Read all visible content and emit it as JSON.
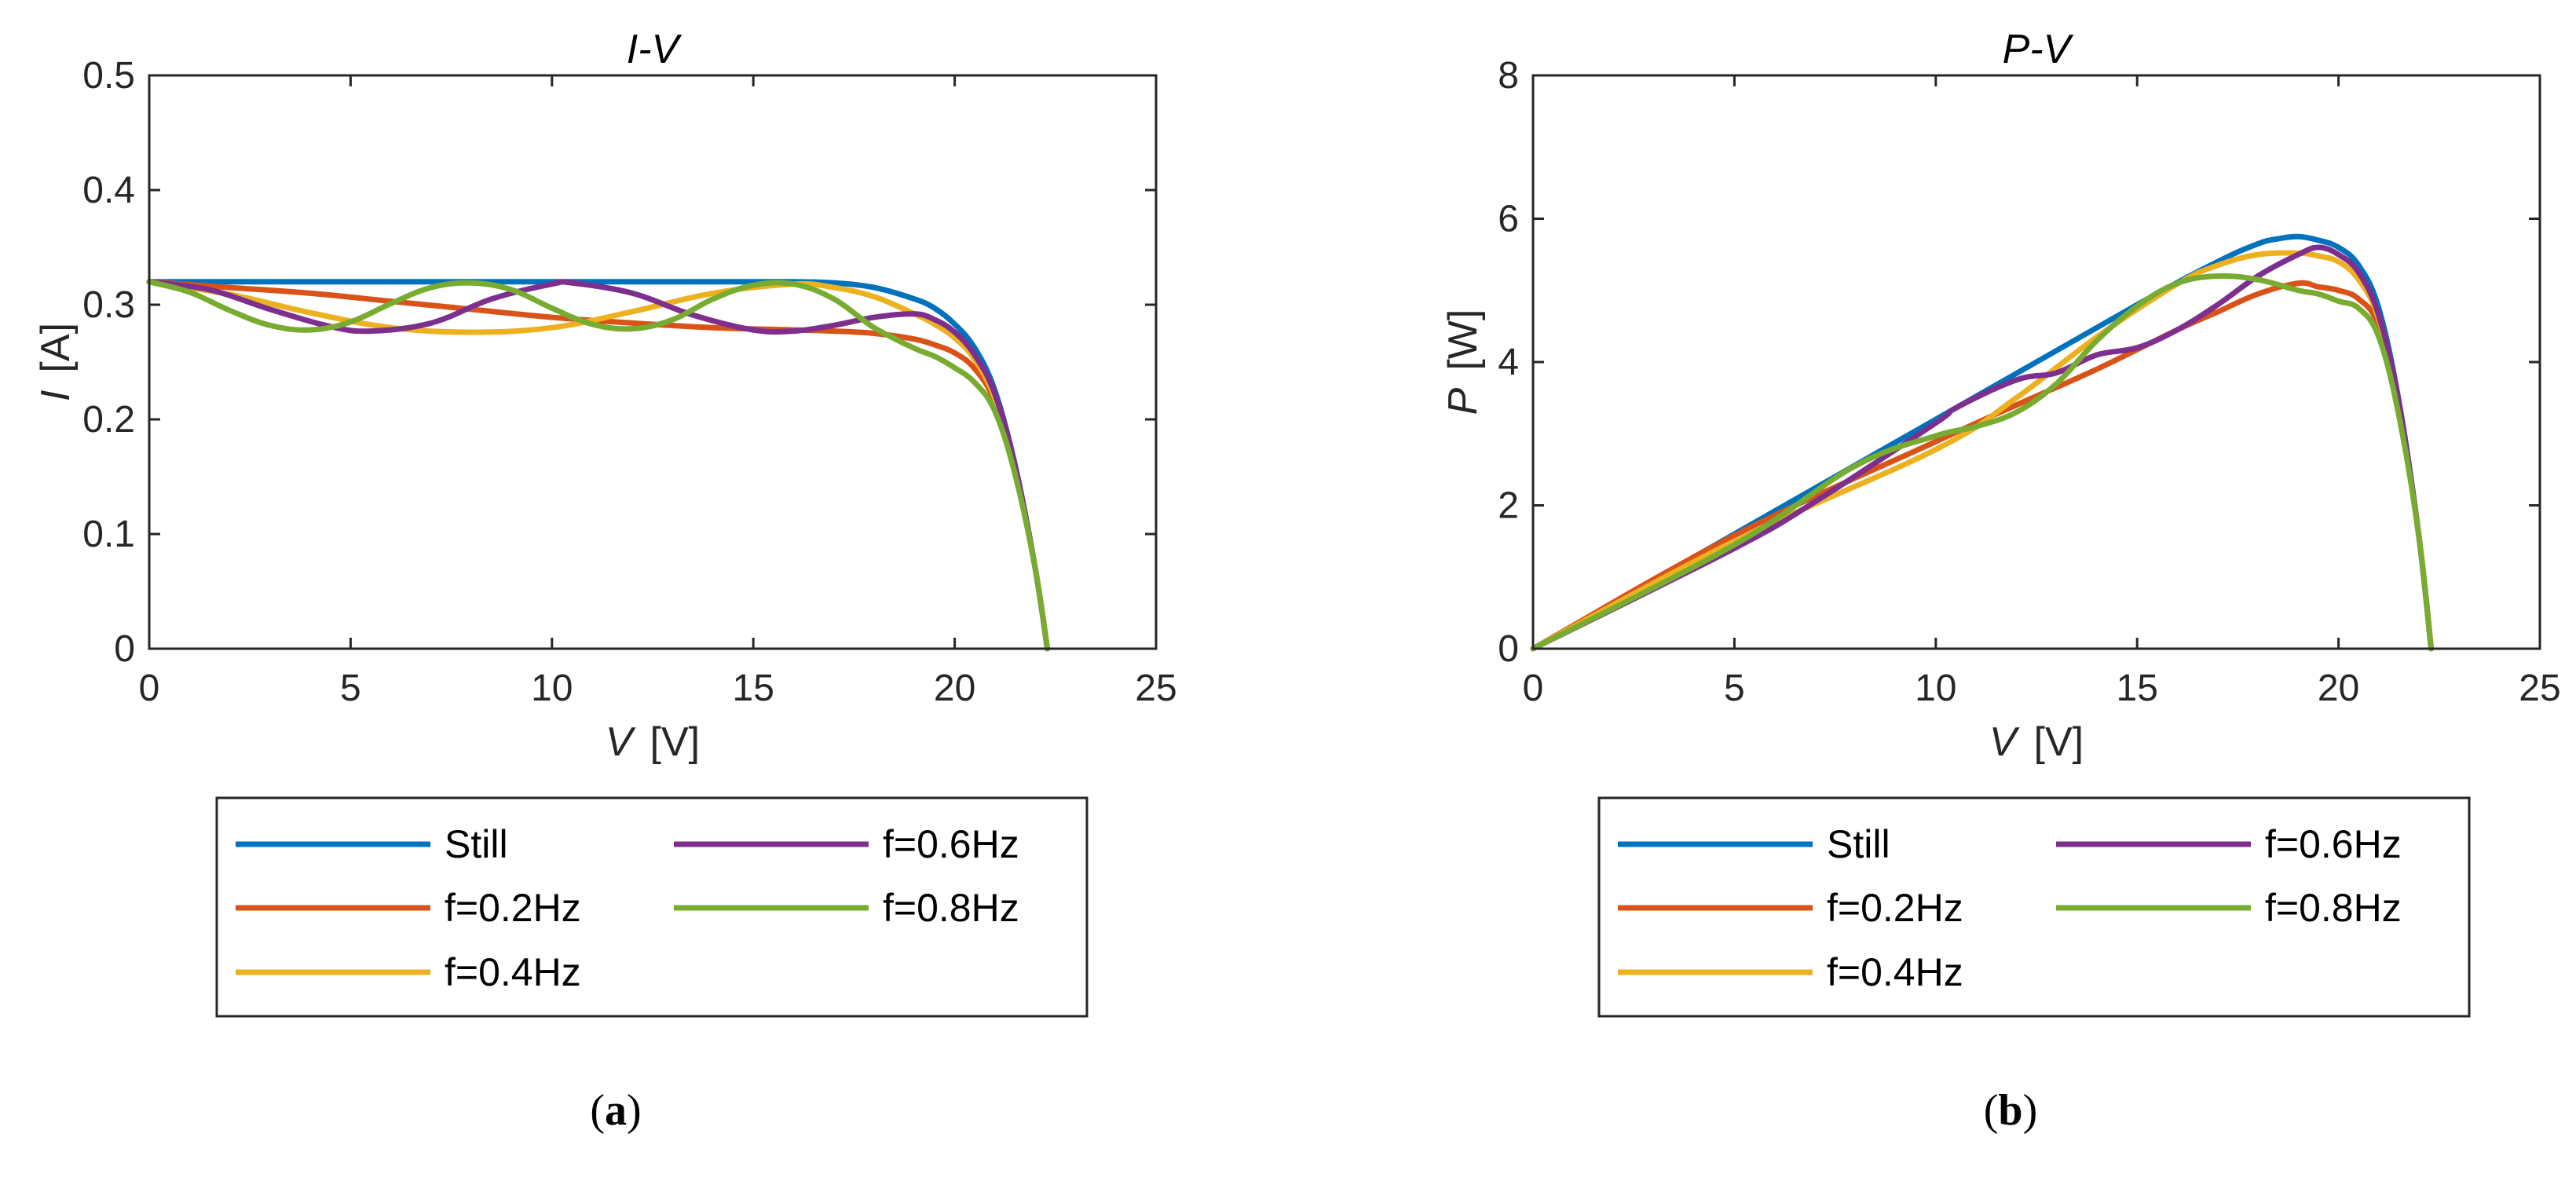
{
  "chart_data": [
    {
      "id": "a",
      "type": "line",
      "title": "I-V",
      "xlabel": {
        "symbol": "V",
        "unit": "[V]"
      },
      "ylabel": {
        "symbol": "I",
        "unit": "[A]"
      },
      "xlim": [
        0,
        25
      ],
      "ylim": [
        0,
        0.5
      ],
      "xticks": [
        "0",
        "5",
        "10",
        "15",
        "20",
        "25"
      ],
      "yticks": [
        "0",
        "0.1",
        "0.2",
        "0.3",
        "0.4",
        "0.5"
      ],
      "legend_position": "below",
      "caption": "a",
      "series": [
        {
          "name": "Still",
          "color": "#0072BD",
          "x": [
            0,
            2,
            4,
            6,
            8,
            10,
            12,
            14,
            16,
            17,
            18,
            19,
            19.5,
            20,
            20.5,
            21,
            21.5,
            22,
            22.3
          ],
          "y": [
            0.32,
            0.32,
            0.32,
            0.32,
            0.32,
            0.32,
            0.32,
            0.32,
            0.32,
            0.319,
            0.315,
            0.305,
            0.297,
            0.283,
            0.262,
            0.225,
            0.16,
            0.07,
            0
          ]
        },
        {
          "name": "f=0.2Hz",
          "color": "#D95319",
          "x": [
            0,
            2,
            4,
            6,
            8,
            10,
            12,
            14,
            16,
            17,
            18,
            19,
            19.5,
            20,
            20.5,
            21,
            21.5,
            22,
            22.3
          ],
          "y": [
            0.32,
            0.315,
            0.31,
            0.303,
            0.296,
            0.289,
            0.284,
            0.28,
            0.278,
            0.277,
            0.275,
            0.27,
            0.265,
            0.258,
            0.244,
            0.215,
            0.155,
            0.07,
            0
          ]
        },
        {
          "name": "f=0.4Hz",
          "color": "#EDB120",
          "x": [
            0,
            2,
            4,
            6,
            8,
            10,
            12,
            14,
            16,
            17,
            18,
            19,
            19.5,
            20,
            20.5,
            21,
            21.5,
            22,
            22.3
          ],
          "y": [
            0.32,
            0.309,
            0.293,
            0.28,
            0.276,
            0.28,
            0.294,
            0.31,
            0.318,
            0.315,
            0.307,
            0.292,
            0.283,
            0.271,
            0.252,
            0.218,
            0.157,
            0.07,
            0
          ]
        },
        {
          "name": "f=0.6Hz",
          "color": "#7E2F8E",
          "x": [
            0,
            1.5,
            3,
            4.5,
            5.5,
            7,
            8.5,
            10,
            10.5,
            12,
            13.5,
            15,
            16,
            17,
            18,
            19,
            19.5,
            20,
            20.5,
            21,
            21.5,
            22,
            22.3
          ],
          "y": [
            0.32,
            0.313,
            0.296,
            0.281,
            0.277,
            0.284,
            0.305,
            0.318,
            0.319,
            0.31,
            0.291,
            0.278,
            0.277,
            0.282,
            0.289,
            0.292,
            0.287,
            0.276,
            0.256,
            0.222,
            0.16,
            0.07,
            0
          ]
        },
        {
          "name": "f=0.8Hz",
          "color": "#77AC30",
          "x": [
            0,
            1,
            2,
            3,
            4,
            5,
            6,
            7,
            8,
            9,
            10,
            11,
            12,
            13,
            14,
            15,
            16,
            17,
            18,
            19,
            19.5,
            20,
            20.5,
            21,
            21.5,
            22,
            22.3
          ],
          "y": [
            0.32,
            0.311,
            0.295,
            0.282,
            0.278,
            0.285,
            0.301,
            0.315,
            0.319,
            0.313,
            0.297,
            0.283,
            0.279,
            0.287,
            0.305,
            0.317,
            0.318,
            0.305,
            0.28,
            0.262,
            0.255,
            0.245,
            0.232,
            0.207,
            0.152,
            0.07,
            0
          ]
        }
      ]
    },
    {
      "id": "b",
      "type": "line",
      "title": "P-V",
      "xlabel": {
        "symbol": "V",
        "unit": "[V]"
      },
      "ylabel": {
        "symbol": "P",
        "unit": "[W]"
      },
      "xlim": [
        0,
        25
      ],
      "ylim": [
        0,
        8
      ],
      "xticks": [
        "0",
        "5",
        "10",
        "15",
        "20",
        "25"
      ],
      "yticks": [
        "0",
        "2",
        "4",
        "6",
        "8"
      ],
      "legend_position": "below",
      "caption": "b",
      "series": [
        {
          "name": "Still",
          "color": "#0072BD",
          "x": [
            0,
            5,
            10,
            15,
            17,
            18,
            18.5,
            19,
            19.5,
            20,
            20.5,
            21,
            21.5,
            22,
            22.3
          ],
          "y": [
            0,
            1.6,
            3.2,
            4.8,
            5.4,
            5.65,
            5.72,
            5.75,
            5.7,
            5.6,
            5.35,
            4.75,
            3.45,
            1.55,
            0
          ]
        },
        {
          "name": "f=0.2Hz",
          "color": "#D95319",
          "x": [
            0,
            5,
            10,
            12,
            14,
            16,
            17,
            18,
            19,
            19.5,
            20,
            20.5,
            21,
            21.5,
            22,
            22.3
          ],
          "y": [
            0,
            1.58,
            2.89,
            3.4,
            3.9,
            4.45,
            4.7,
            4.95,
            5.1,
            5.05,
            5.0,
            4.88,
            4.5,
            3.35,
            1.55,
            0
          ]
        },
        {
          "name": "f=0.4Hz",
          "color": "#EDB120",
          "x": [
            0,
            5,
            10,
            12,
            14,
            16,
            17,
            18,
            19,
            19.5,
            20,
            20.5,
            21,
            21.5,
            22,
            22.3
          ],
          "y": [
            0,
            1.5,
            2.78,
            3.5,
            4.35,
            5.09,
            5.35,
            5.5,
            5.52,
            5.48,
            5.4,
            5.15,
            4.6,
            3.4,
            1.55,
            0
          ]
        },
        {
          "name": "f=0.6Hz",
          "color": "#7E2F8E",
          "x": [
            0,
            5,
            7,
            10,
            10.5,
            12,
            13,
            14,
            15,
            16,
            17,
            18,
            19,
            19.5,
            20,
            20.5,
            21,
            21.5,
            22,
            22.3
          ],
          "y": [
            0,
            1.4,
            2.05,
            3.15,
            3.36,
            3.75,
            3.85,
            4.1,
            4.2,
            4.45,
            4.8,
            5.2,
            5.5,
            5.6,
            5.5,
            5.25,
            4.65,
            3.45,
            1.55,
            0
          ]
        },
        {
          "name": "f=0.8Hz",
          "color": "#77AC30",
          "x": [
            0,
            5,
            8,
            10,
            11,
            12,
            13,
            14,
            15,
            16,
            17,
            18,
            19,
            19.5,
            20,
            20.5,
            21,
            21.5,
            22,
            22.3
          ],
          "y": [
            0,
            1.45,
            2.55,
            2.97,
            3.1,
            3.3,
            3.7,
            4.3,
            4.78,
            5.1,
            5.2,
            5.15,
            5.0,
            4.95,
            4.85,
            4.75,
            4.35,
            3.25,
            1.55,
            0
          ]
        }
      ]
    }
  ]
}
